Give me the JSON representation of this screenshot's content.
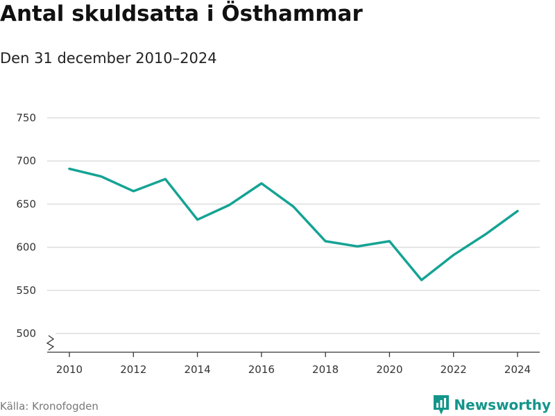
{
  "header": {
    "title": "Antal skuldsatta i Östhammar",
    "subtitle": "Den 31 december 2010–2024"
  },
  "footer": {
    "source": "Källa: Kronofogden",
    "brand": "Newsworthy",
    "brand_icon": "newsworthy-logo-icon"
  },
  "colors": {
    "line": "#14a394",
    "grid": "#dddddd",
    "axis": "#333333",
    "brand": "#14958a"
  },
  "chart_data": {
    "type": "line",
    "title": "Antal skuldsatta i Östhammar",
    "subtitle": "Den 31 december 2010–2024",
    "xlabel": "",
    "ylabel": "",
    "x": [
      2010,
      2011,
      2012,
      2013,
      2014,
      2015,
      2016,
      2017,
      2018,
      2019,
      2020,
      2021,
      2022,
      2023,
      2024
    ],
    "series": [
      {
        "name": "Antal skuldsatta",
        "values": [
          691,
          682,
          665,
          679,
          632,
          649,
          674,
          647,
          607,
          601,
          607,
          562,
          591,
          615,
          642
        ]
      }
    ],
    "ylim": [
      500,
      750
    ],
    "yticks": [
      500,
      550,
      600,
      650,
      700,
      750
    ],
    "xticks": [
      2010,
      2012,
      2014,
      2016,
      2018,
      2020,
      2022,
      2024
    ],
    "grid": true,
    "axis_break": true,
    "legend": "none"
  }
}
